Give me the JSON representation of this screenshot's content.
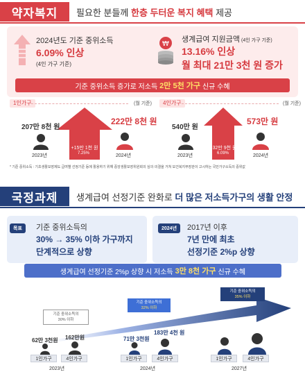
{
  "section1": {
    "tag": "약자복지",
    "headline_pre": "필요한 분들께 ",
    "headline_bold": "한층 두터운 복지 혜택",
    "headline_post": " 제공",
    "left": {
      "line1": "2024년도 기준 중위소득",
      "big": "6.09% 인상",
      "note": "(4인 가구 기준)"
    },
    "right": {
      "line1": "생계급여 지원금액",
      "line1_note": "(4인 가구 기준)",
      "big1": "13.16% 인상",
      "big2": "월 최대 21만 3천 원 증가"
    },
    "bar_pre": "기준 중위소득 증가로 저소득",
    "bar_highlight": "2만 5천 가구",
    "bar_post": "신규 수혜"
  },
  "chart1": {
    "household": "1인가구",
    "unit": "(월 기준)",
    "y2023_label": "2023년",
    "y2024_label": "2024년",
    "v2023": "207만 8천 원",
    "v2024": "222만 8천 원",
    "increase": "+15만 1천 원",
    "pct": "7.25%"
  },
  "chart2": {
    "household": "4인가구",
    "unit": "(월 기준)",
    "y2023_label": "2023년",
    "y2024_label": "2024년",
    "v2023": "540만 원",
    "v2024": "573만 원",
    "increase": "+32만 9천 원",
    "pct": "6.09%"
  },
  "footnote": "* 기준 중위소득 : 기초생활보장제도 급여별 선정기준 등에 활용하기 위해 중앙생활보장위원회의 심의·의결을 거쳐 보건복지부장관이 고시하는 국민가구소득의 중위값",
  "section2": {
    "tag": "국정과제",
    "headline_pre": "생계급여 선정기준 완화로 ",
    "headline_bold": "더 많은 저소득가구의 생활 안정",
    "left_tag": "목표",
    "left_line1": "기준 중위소득의",
    "left_big1": "30% → 35% 이하 가구까지",
    "left_big2": "단계적으로 상향",
    "right_tag": "2024년",
    "right_line1": "2017년 이후",
    "right_big1": "7년 만에 최초",
    "right_big2": "선정기준 2%p 상향",
    "bar_pre": "생계급여 선정기준 2%p 상향 시 저소득",
    "bar_highlight": "3만 8천 가구",
    "bar_post": "신규 수혜"
  },
  "timeline": {
    "c2023_l1": "기준 중위소득의",
    "c2023_l2": "30% 이하",
    "c2024_l1": "기준 중위소득의",
    "c2024_l2": "32% 이하",
    "c2027_l1": "기준 중위소득의",
    "c2027_l2": "35% 이하",
    "y2023": "2023년",
    "y2024": "2024년",
    "y2027": "2027년",
    "hh1": "1인가구",
    "hh4": "4인가구",
    "v2023_1": "62만 3천원",
    "v2023_4": "162만원",
    "v2024_1": "71만 3천원",
    "v2024_4": "183만 4천 원"
  },
  "colors": {
    "red": "#d94147",
    "navy": "#24407a",
    "blue": "#4d6fc9",
    "pink_bg": "#fdecec",
    "blue_bg": "#e8eef9"
  }
}
